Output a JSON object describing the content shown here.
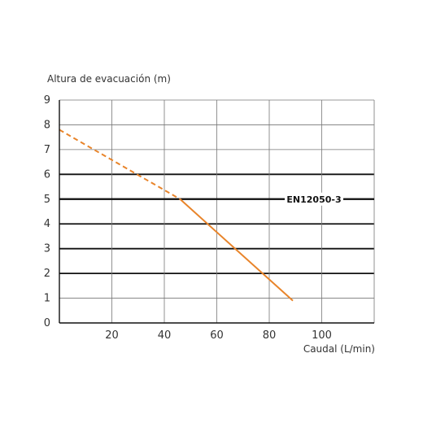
{
  "chart_data": {
    "type": "line",
    "ylabel": "Altura de evacuación (m)",
    "xlabel": "Caudal (L/min)",
    "xlim": [
      0,
      120
    ],
    "ylim": [
      0,
      9
    ],
    "xticks": [
      20,
      40,
      60,
      80,
      100
    ],
    "yticks": [
      0,
      1,
      2,
      3,
      4,
      5,
      6,
      7,
      8,
      9
    ],
    "grid": true,
    "thick_gridlines_y": [
      2,
      3,
      4,
      5,
      6
    ],
    "reference_line": {
      "y": 5,
      "label": "EN12050-3"
    },
    "series": [
      {
        "color": "#e8842a",
        "style": "dashed",
        "x": [
          0,
          46
        ],
        "y": [
          7.8,
          5.0
        ]
      },
      {
        "color": "#e8842a",
        "style": "solid",
        "x": [
          46,
          89
        ],
        "y": [
          5.0,
          0.9
        ]
      }
    ]
  }
}
